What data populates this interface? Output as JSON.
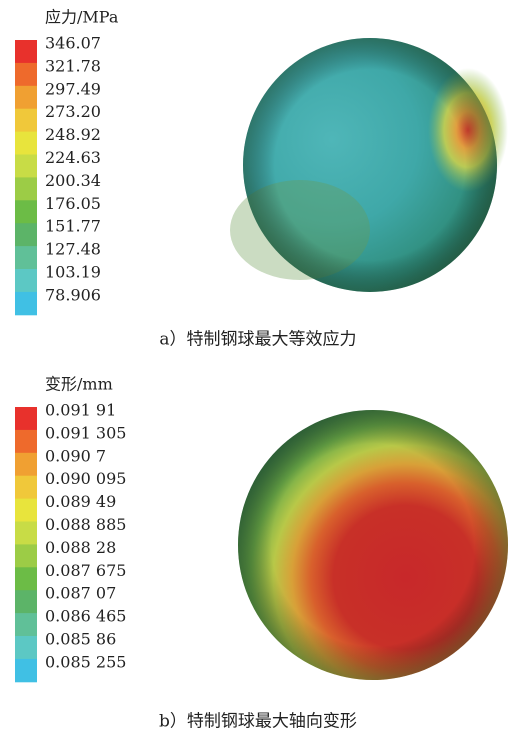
{
  "panels": [
    {
      "legend_title": "应力/MPa",
      "legend_labels": [
        "346.07",
        "321.78",
        "297.49",
        "273.20",
        "248.92",
        "224.63",
        "200.34",
        "176.05",
        "151.77",
        "127.48",
        "103.19",
        "78.906"
      ],
      "caption": "a）特制钢球最大等效应力"
    },
    {
      "legend_title": "变形/mm",
      "legend_labels": [
        "0.091 91",
        "0.091 305",
        "0.090 7",
        "0.090 095",
        "0.089 49",
        "0.088 885",
        "0.088 28",
        "0.087 675",
        "0.087 07",
        "0.086 465",
        "0.085 86",
        "0.085 255"
      ],
      "caption": "b）特制钢球最大轴向变形"
    }
  ]
}
